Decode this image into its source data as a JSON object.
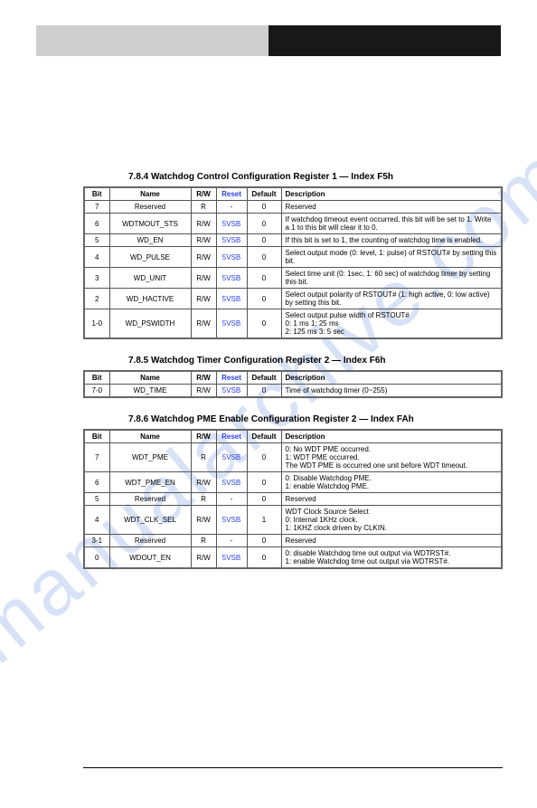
{
  "watermark_text": "manualarchive.com",
  "sections": [
    {
      "title": "7.8.4  Watchdog Control Configuration Register 1 — Index F5h",
      "columns": [
        "Bit",
        "Name",
        "R/W",
        "Reset",
        "Default",
        "Description"
      ],
      "rows": [
        {
          "bit": "7",
          "name": "Reserved",
          "rw": "R",
          "reset": "-",
          "def": "0",
          "desc": "Reserved"
        },
        {
          "bit": "6",
          "name": "WDTMOUT_STS",
          "rw": "R/W",
          "reset": "5VSB",
          "def": "0",
          "desc": "If watchdog timeout event occurred, this bit will be set to 1. Write a 1 to this bit will clear it to 0."
        },
        {
          "bit": "5",
          "name": "WD_EN",
          "rw": "R/W",
          "reset": "5VSB",
          "def": "0",
          "desc": "If this bit is set to 1, the counting of watchdog time is enabled."
        },
        {
          "bit": "4",
          "name": "WD_PULSE",
          "rw": "R/W",
          "reset": "5VSB",
          "def": "0",
          "desc": "Select output mode (0: level, 1: pulse) of RSTOUT# by setting this bit."
        },
        {
          "bit": "3",
          "name": "WD_UNIT",
          "rw": "R/W",
          "reset": "5VSB",
          "def": "0",
          "desc": "Select time unit (0: 1sec, 1: 60 sec) of watchdog timer by setting this bit."
        },
        {
          "bit": "2",
          "name": "WD_HACTIVE",
          "rw": "R/W",
          "reset": "5VSB",
          "def": "0",
          "desc": "Select output polarity of RSTOUT# (1: high active, 0: low active) by setting this bit."
        },
        {
          "bit": "1-0",
          "name": "WD_PSWIDTH",
          "rw": "R/W",
          "reset": "5VSB",
          "def": "0",
          "desc": "Select output pulse width of RSTOUT#\n0: 1 ms            1: 25 ms\n2: 125 ms         3: 5 sec"
        }
      ]
    },
    {
      "title": "7.8.5  Watchdog Timer Configuration Register 2 — Index F6h",
      "columns": [
        "Bit",
        "Name",
        "R/W",
        "Reset",
        "Default",
        "Description"
      ],
      "rows": [
        {
          "bit": "7-0",
          "name": "WD_TIME",
          "rw": "R/W",
          "reset": "5VSB",
          "def": "0",
          "desc": "Time of watchdog timer (0~255)"
        }
      ]
    },
    {
      "title": "7.8.6  Watchdog PME Enable Configuration Register 2 — Index FAh",
      "columns": [
        "Bit",
        "Name",
        "R/W",
        "Reset",
        "Default",
        "Description"
      ],
      "rows": [
        {
          "bit": "7",
          "name": "WDT_PME",
          "rw": "R",
          "reset": "5VSB",
          "def": "0",
          "desc": "0: No WDT PME occurred.\n1: WDT PME occurred.\nThe WDT PME is occurred one unit before WDT timeout."
        },
        {
          "bit": "6",
          "name": "WDT_PME_EN",
          "rw": "R/W",
          "reset": "5VSB",
          "def": "0",
          "desc": "0: Disable Watchdog PME.\n1: enable Watchdog PME."
        },
        {
          "bit": "5",
          "name": "Reserved",
          "rw": "R",
          "reset": "-",
          "def": "0",
          "desc": "Reserved"
        },
        {
          "bit": "4",
          "name": "WDT_CLK_SEL",
          "rw": "R/W",
          "reset": "5VSB",
          "def": "1",
          "desc": "WDT Clock Source Select\n0: Internal 1KHz clock.\n1: 1KHZ clock driven by CLKIN."
        },
        {
          "bit": "3-1",
          "name": "Reserved",
          "rw": "R",
          "reset": "-",
          "def": "0",
          "desc": "Reserved"
        },
        {
          "bit": "0",
          "name": "WDOUT_EN",
          "rw": "R/W",
          "reset": "5VSB",
          "def": "0",
          "desc": "0: disable Watchdog time out output via WDTRST#.\n1: enable Watchdog time out output via WDTRST#."
        }
      ]
    }
  ]
}
